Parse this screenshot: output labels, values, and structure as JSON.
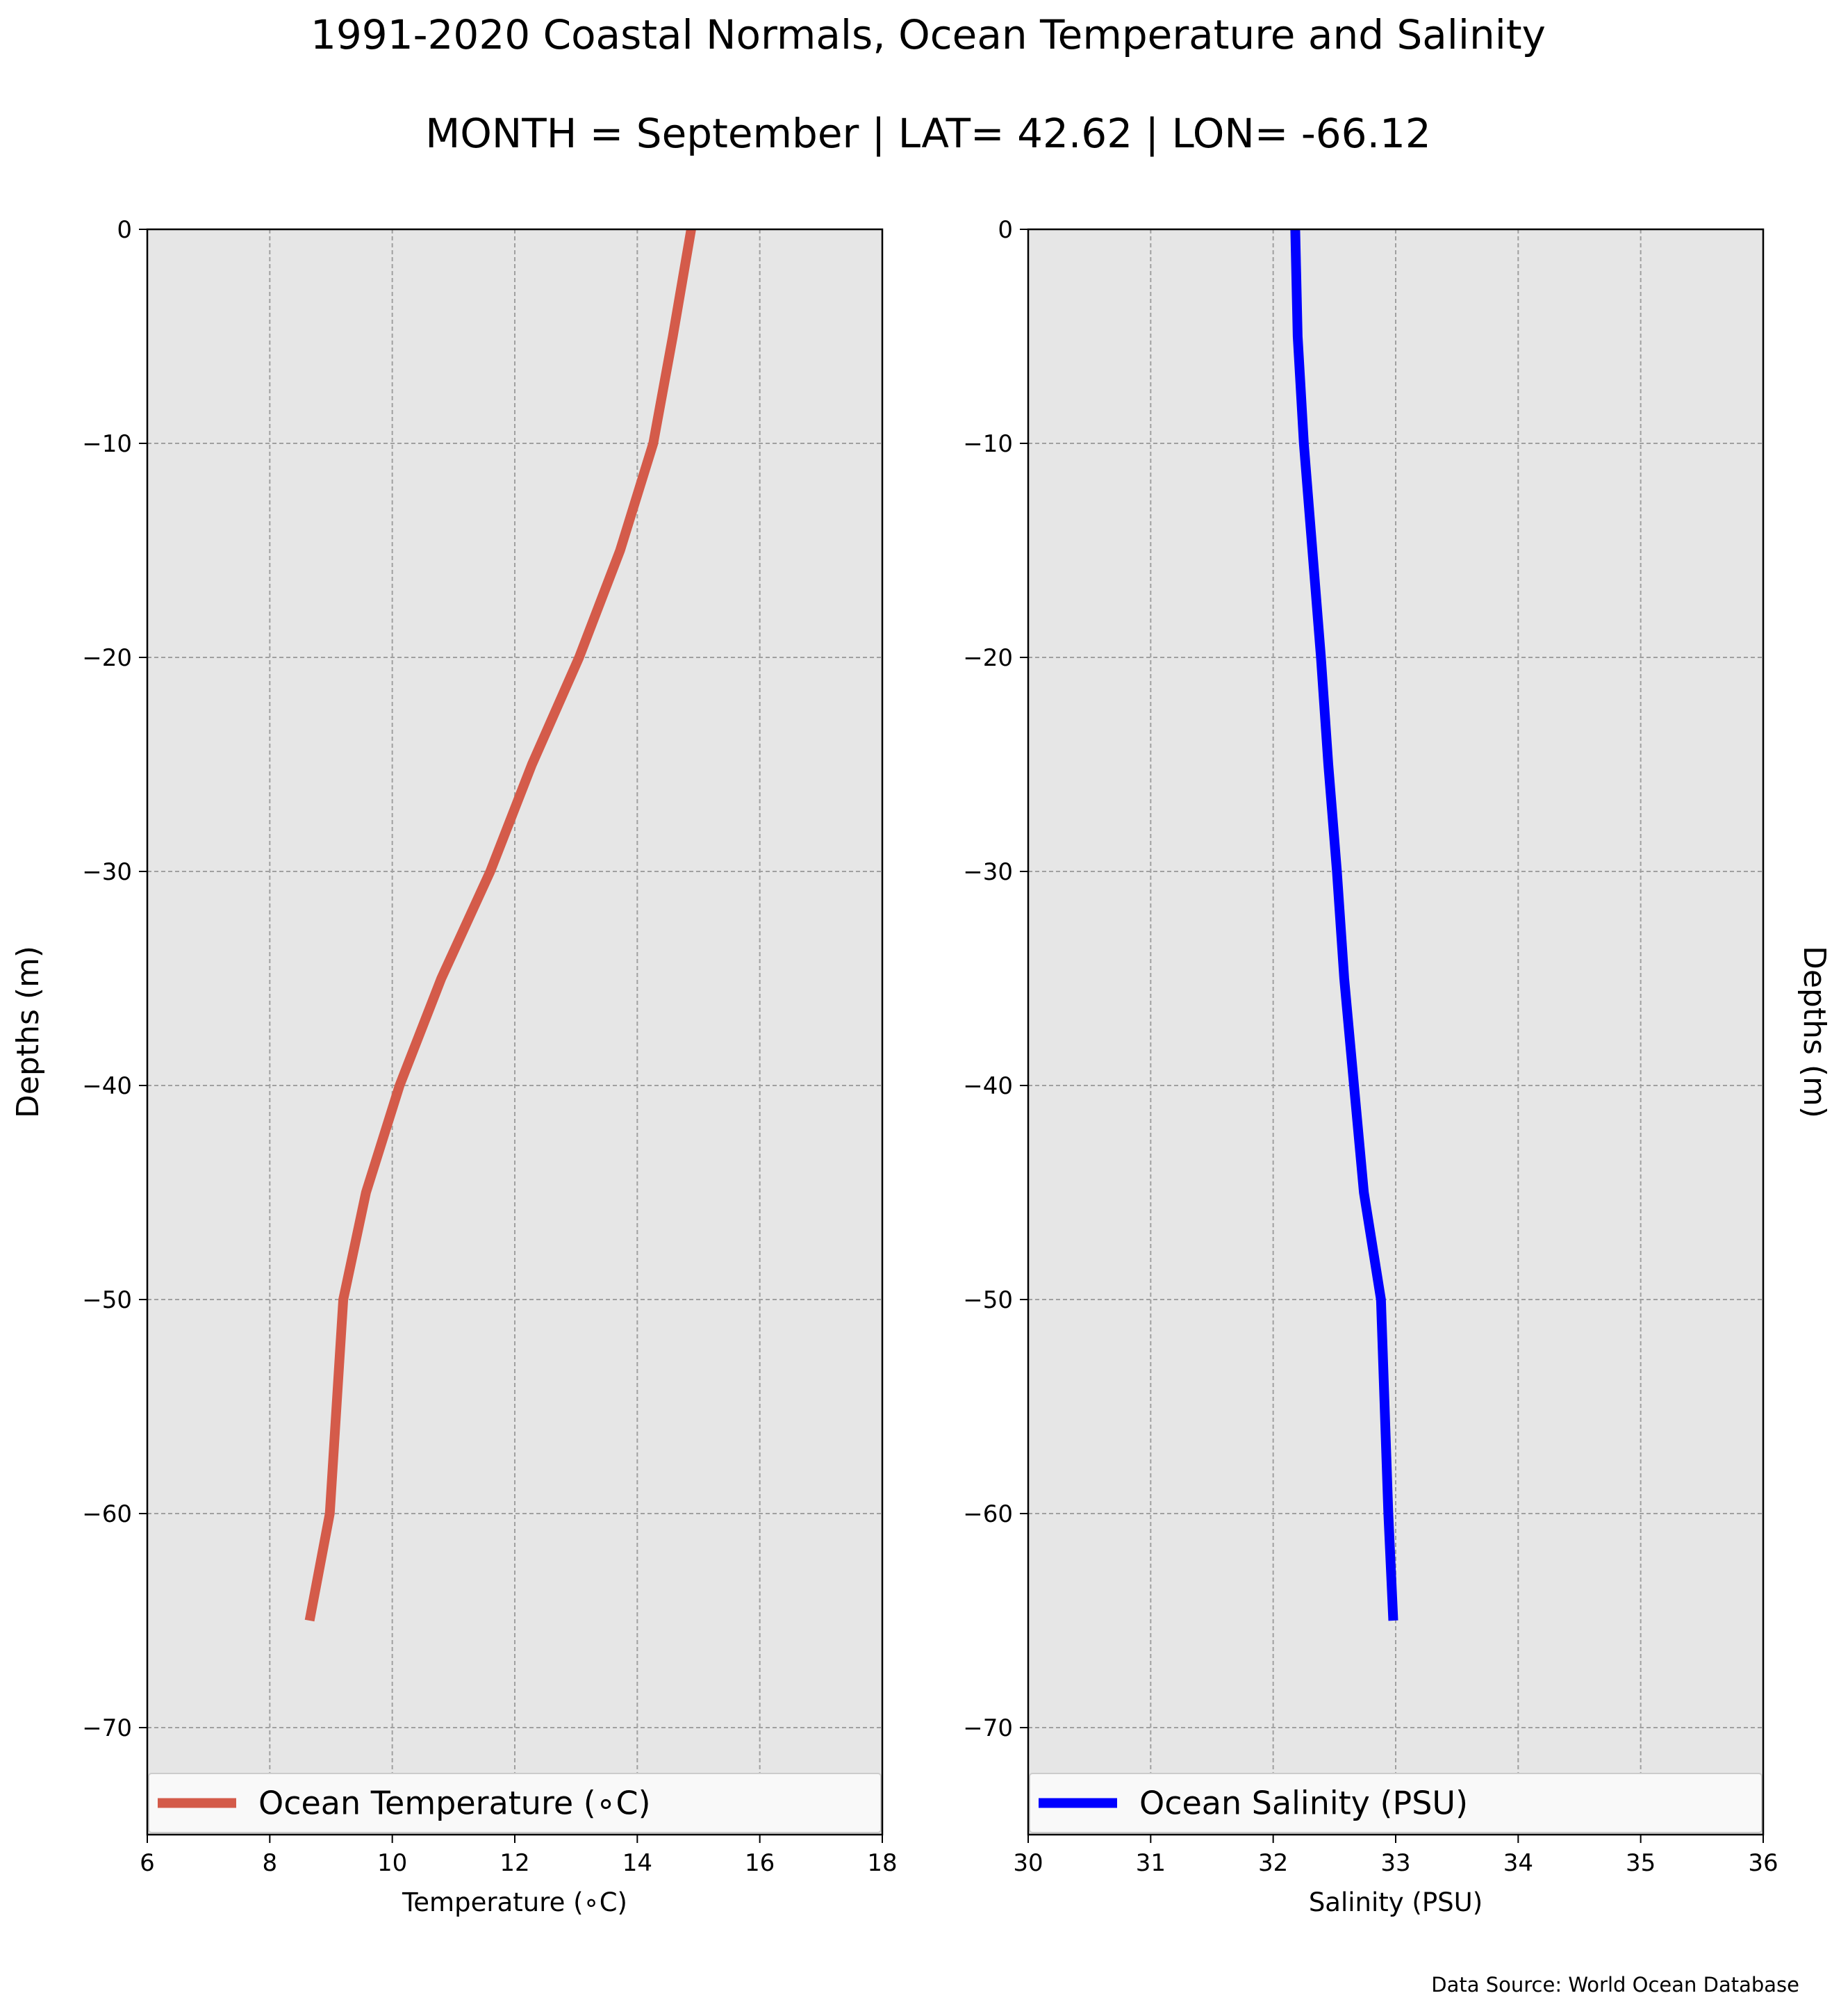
{
  "title": "1991-2020 Coastal Normals, Ocean Temperature and Salinity",
  "subtitle": "MONTH = September | LAT= 42.62 | LON= -66.12",
  "source_note": "Data Source: World Ocean Database",
  "chart_data": [
    {
      "type": "line",
      "xlabel": "Temperature (∘C)",
      "ylabel": "Depths (m)",
      "xlim": [
        6,
        18
      ],
      "ylim": [
        -75,
        0
      ],
      "xticks": [
        6,
        8,
        10,
        12,
        14,
        16,
        18
      ],
      "xtick_labels": [
        "6",
        "8",
        "10",
        "12",
        "14",
        "16",
        "18"
      ],
      "yticks": [
        0,
        -10,
        -20,
        -30,
        -40,
        -50,
        -60,
        -70
      ],
      "ytick_labels": [
        "0",
        "−10",
        "−20",
        "−30",
        "−40",
        "−50",
        "−60",
        "−70"
      ],
      "grid": true,
      "legend_position": "bottom",
      "series": [
        {
          "name": "Ocean Temperature (∘C)",
          "color": "#d45b4a",
          "x": [
            14.88,
            14.58,
            14.26,
            13.72,
            13.05,
            12.28,
            11.6,
            10.8,
            10.12,
            9.57,
            9.2,
            8.98,
            8.65
          ],
          "y": [
            0,
            -5,
            -10,
            -15,
            -20,
            -25,
            -30,
            -35,
            -40,
            -45,
            -50,
            -60,
            -65
          ]
        }
      ]
    },
    {
      "type": "line",
      "xlabel": "Salinity (PSU)",
      "ylabel": "Depths (m)",
      "xlim": [
        30,
        36
      ],
      "ylim": [
        -75,
        0
      ],
      "xticks": [
        30,
        31,
        32,
        33,
        34,
        35,
        36
      ],
      "xtick_labels": [
        "30",
        "31",
        "32",
        "33",
        "34",
        "35",
        "36"
      ],
      "yticks": [
        0,
        -10,
        -20,
        -30,
        -40,
        -50,
        -60,
        -70
      ],
      "ytick_labels": [
        "0",
        "−10",
        "−20",
        "−30",
        "−40",
        "−50",
        "−60",
        "−70"
      ],
      "grid": true,
      "legend_position": "bottom",
      "series": [
        {
          "name": "Ocean Salinity (PSU)",
          "color": "#0000ff",
          "x": [
            32.18,
            32.2,
            32.25,
            32.32,
            32.39,
            32.45,
            32.52,
            32.58,
            32.66,
            32.74,
            32.88,
            32.94,
            32.98
          ],
          "y": [
            0,
            -5,
            -10,
            -15,
            -20,
            -25,
            -30,
            -35,
            -40,
            -45,
            -50,
            -60,
            -65
          ]
        }
      ]
    }
  ]
}
